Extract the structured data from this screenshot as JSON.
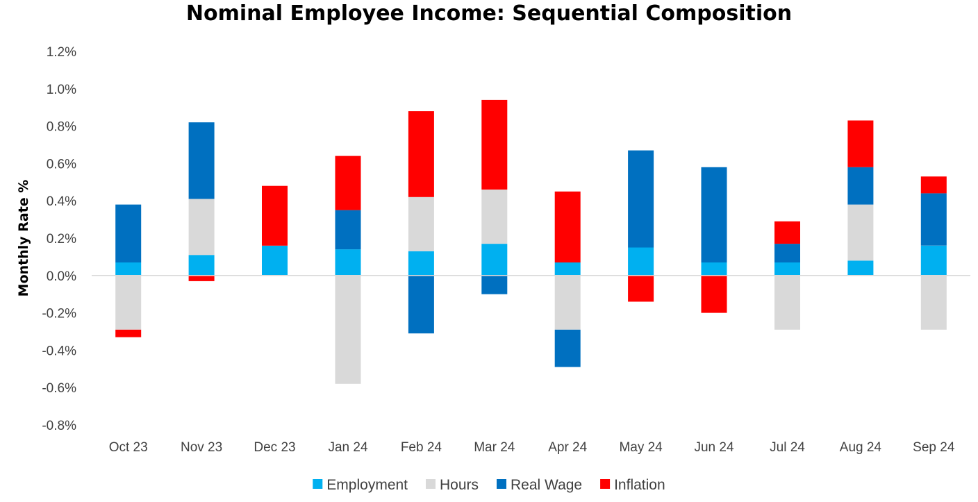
{
  "chart_data": {
    "type": "bar",
    "stacked": true,
    "title": "Nominal Employee Income: Sequential Composition",
    "xlabel": "",
    "ylabel": "Monthly Rate %",
    "ylim": [
      -0.8,
      1.2
    ],
    "yticks": [
      1.2,
      1.0,
      0.8,
      0.6,
      0.4,
      0.2,
      0.0,
      -0.2,
      -0.4,
      -0.6,
      -0.8
    ],
    "ytick_labels": [
      "1.2%",
      "1.0%",
      "0.8%",
      "0.6%",
      "0.4%",
      "0.2%",
      "0.0%",
      "-0.2%",
      "-0.4%",
      "-0.6%",
      "-0.8%"
    ],
    "grid": false,
    "legend_position": "bottom",
    "categories": [
      "Oct 23",
      "Nov 23",
      "Dec 23",
      "Jan 24",
      "Feb 24",
      "Mar 24",
      "Apr 24",
      "May 24",
      "Jun 24",
      "Jul 24",
      "Aug 24",
      "Sep 24"
    ],
    "series": [
      {
        "name": "Employment",
        "color": "#00b0f0",
        "values": [
          0.07,
          0.11,
          0.16,
          0.14,
          0.13,
          0.17,
          0.07,
          0.15,
          0.07,
          0.07,
          0.08,
          0.16
        ]
      },
      {
        "name": "Hours",
        "color": "#d9d9d9",
        "values": [
          -0.29,
          0.3,
          0.0,
          -0.58,
          0.29,
          0.29,
          -0.29,
          0.0,
          0.0,
          -0.29,
          0.3,
          -0.29
        ]
      },
      {
        "name": "Real Wage",
        "color": "#0070c0",
        "values": [
          0.31,
          0.41,
          0.0,
          0.21,
          -0.31,
          -0.1,
          -0.2,
          0.52,
          0.51,
          0.1,
          0.2,
          0.28
        ]
      },
      {
        "name": "Inflation",
        "color": "#ff0000",
        "values": [
          -0.04,
          -0.03,
          0.32,
          0.29,
          0.46,
          0.48,
          0.38,
          -0.14,
          -0.2,
          0.12,
          0.25,
          0.09
        ]
      }
    ]
  }
}
